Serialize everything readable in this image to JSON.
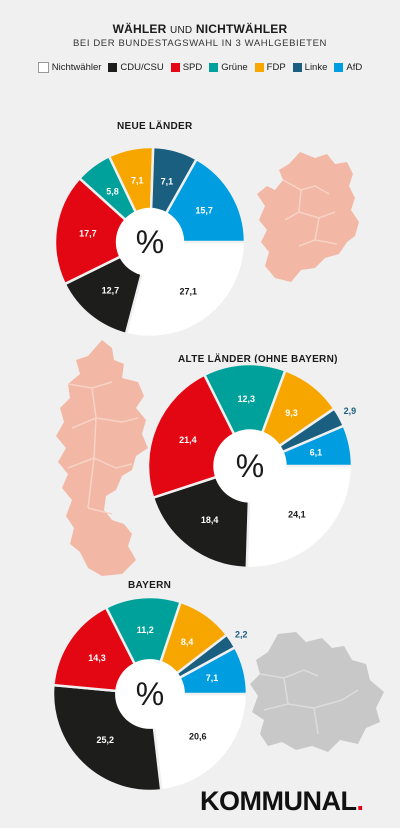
{
  "header": {
    "title_part1": "WÄHLER",
    "title_connector": "UND",
    "title_part2": "NICHTWÄHLER",
    "subtitle": "BEI DER BUNDESTAGSWAHL IN 3 WAHLGEBIETEN"
  },
  "legend": [
    {
      "label": "Nichtwähler",
      "color": "#ffffff"
    },
    {
      "label": "CDU/CSU",
      "color": "#1d1d1b"
    },
    {
      "label": "SPD",
      "color": "#e30613"
    },
    {
      "label": "Grüne",
      "color": "#00a19a"
    },
    {
      "label": "FDP",
      "color": "#f7a600"
    },
    {
      "label": "Linke",
      "color": "#1a5e80"
    },
    {
      "label": "AfD",
      "color": "#009ee0"
    }
  ],
  "center_symbol": "%",
  "logo": {
    "text": "KOMMUNAL",
    "dot": "."
  },
  "chart_data": [
    {
      "type": "pie",
      "title": "NEUE LÄNDER",
      "categories": [
        "Nichtwähler",
        "CDU/CSU",
        "SPD",
        "Grüne",
        "FDP",
        "Linke",
        "AfD"
      ],
      "values": [
        27.1,
        12.7,
        17.7,
        5.8,
        7.1,
        7.1,
        15.7
      ],
      "labels": [
        "27,1",
        "12,7",
        "17,7",
        "5,8",
        "7,1",
        "7,1",
        "15,7"
      ]
    },
    {
      "type": "pie",
      "title": "ALTE LÄNDER (OHNE BAYERN)",
      "categories": [
        "Nichtwähler",
        "CDU/CSU",
        "SPD",
        "Grüne",
        "FDP",
        "Linke",
        "AfD"
      ],
      "values": [
        24.1,
        18.4,
        21.4,
        12.3,
        9.3,
        2.9,
        6.1
      ],
      "labels": [
        "24,1",
        "18,4",
        "21,4",
        "12,3",
        "9,3",
        "2,9",
        "6,1"
      ]
    },
    {
      "type": "pie",
      "title": "BAYERN",
      "categories": [
        "Nichtwähler",
        "CDU/CSU",
        "SPD",
        "Grüne",
        "FDP",
        "Linke",
        "AfD"
      ],
      "values": [
        20.6,
        25.2,
        14.3,
        11.2,
        8.4,
        2.2,
        7.1
      ],
      "labels": [
        "20,6",
        "25,2",
        "14,3",
        "11,2",
        "8,4",
        "2,2",
        "7,1"
      ]
    }
  ]
}
